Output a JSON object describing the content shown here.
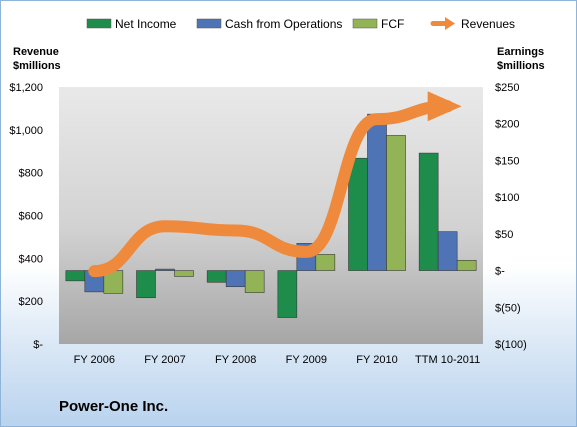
{
  "chart_data": {
    "type": "bar",
    "title": "Power-One Inc.",
    "categories": [
      "FY 2006",
      "FY 2007",
      "FY 2008",
      "FY 2009",
      "FY 2010",
      "TTM 10-2011"
    ],
    "series": [
      {
        "name": "Net Income",
        "axis": "right",
        "kind": "bar",
        "color": "#1e8c4a",
        "values": [
          -14,
          -37,
          -16,
          -64,
          153,
          160
        ]
      },
      {
        "name": "Cash from Operations",
        "axis": "right",
        "kind": "bar",
        "color": "#4f74b5",
        "values": [
          -29,
          2,
          -22,
          37,
          213,
          53
        ]
      },
      {
        "name": "FCF",
        "axis": "right",
        "kind": "bar",
        "color": "#92b456",
        "values": [
          -31,
          -8,
          -30,
          22,
          184,
          14
        ]
      },
      {
        "name": "Revenues",
        "axis": "left",
        "kind": "line",
        "color": "#ef8a3c",
        "values": [
          340,
          550,
          530,
          430,
          1050,
          1110
        ]
      }
    ],
    "left_axis": {
      "label_line1": "Revenue",
      "label_line2": "$millions",
      "ylim": [
        0,
        1200
      ],
      "ticks": [
        1200,
        1000,
        800,
        600,
        400,
        200,
        0
      ],
      "tick_labels": [
        "$1,200",
        "$1,000",
        "$800",
        "$600",
        "$400",
        "$200",
        "$-"
      ]
    },
    "right_axis": {
      "label_line1": "Earnings",
      "label_line2": "$millions",
      "ylim": [
        -100,
        250
      ],
      "ticks": [
        250,
        200,
        150,
        100,
        50,
        0,
        -50,
        -100
      ],
      "tick_labels": [
        "$250",
        "$200",
        "$150",
        "$100",
        "$50",
        "$-",
        "$(50)",
        "$(100)"
      ]
    },
    "legend_position": "top",
    "grid": false
  }
}
